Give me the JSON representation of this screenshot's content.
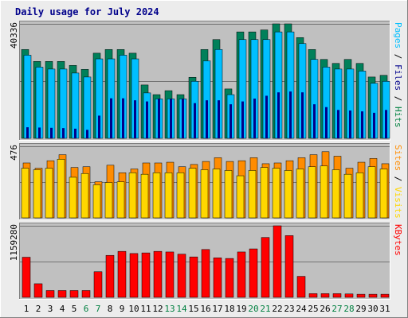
{
  "chart_data": {
    "type": "bar",
    "title": "Daily usage for July 2024",
    "colors": {
      "hits": "#00805a",
      "files": "#00bfff",
      "pages": "#00008b",
      "visits": "#ffd700",
      "sites": "#ff8c00",
      "kbytes": "#ff0000",
      "weekend_label": "#008040",
      "weekday_label": "#000000",
      "panel_bg": "#c0c0c0",
      "frame_bg": "#ececec"
    },
    "categories": [
      "1",
      "2",
      "3",
      "4",
      "5",
      "6",
      "7",
      "8",
      "9",
      "10",
      "11",
      "12",
      "13",
      "14",
      "15",
      "16",
      "17",
      "18",
      "19",
      "20",
      "21",
      "22",
      "23",
      "24",
      "25",
      "26",
      "27",
      "28",
      "29",
      "30",
      "31"
    ],
    "weekend_days": [
      "6",
      "7",
      "13",
      "14",
      "20",
      "21",
      "27",
      "28"
    ],
    "panels": [
      {
        "name": "hits-files-pages",
        "ymax_label": "40336",
        "ymax": 40336,
        "side_labels": [
          {
            "text": "Pages",
            "color": "#00bfff"
          },
          {
            "text": " / ",
            "color": "#000000"
          },
          {
            "text": "Files",
            "color": "#00008b"
          },
          {
            "text": " / ",
            "color": "#000000"
          },
          {
            "text": "Hits",
            "color": "#008040"
          }
        ],
        "series": [
          {
            "key": "hits",
            "values": [
              31300,
              27100,
              27100,
              27100,
              25700,
              24300,
              30000,
              31300,
              31300,
              30000,
              18800,
              15400,
              16800,
              15400,
              21500,
              31300,
              34800,
              17400,
              37500,
              37500,
              38200,
              40336,
              40336,
              35500,
              31300,
              27800,
              26400,
              27800,
              26400,
              21600,
              22200
            ]
          },
          {
            "key": "files",
            "values": [
              29300,
              25100,
              24400,
              24400,
              23000,
              21600,
              28000,
              28000,
              29300,
              28000,
              16000,
              13900,
              13900,
              13900,
              20100,
              27300,
              31300,
              15400,
              34800,
              34800,
              34800,
              37500,
              37500,
              33400,
              27800,
              25100,
              24400,
              24400,
              23700,
              19400,
              20100
            ]
          },
          {
            "key": "pages",
            "values": [
              3900,
              3800,
              3700,
              3600,
              3400,
              3000,
              8000,
              14100,
              14100,
              13400,
              13000,
              13900,
              13900,
              13900,
              12400,
              13400,
              13400,
              12000,
              13000,
              14000,
              15000,
              16200,
              16500,
              16200,
              12000,
              11000,
              10000,
              9800,
              9500,
              9000,
              10000
            ]
          }
        ]
      },
      {
        "name": "sites-visits",
        "ymax_label": "476",
        "ymax": 476,
        "side_labels": [
          {
            "text": "Sites",
            "color": "#ff8c00"
          },
          {
            "text": " / ",
            "color": "#000000"
          },
          {
            "text": "Visits",
            "color": "#ffd700"
          }
        ],
        "series": [
          {
            "key": "sites",
            "values": [
              365,
              330,
              380,
              420,
              335,
              340,
              240,
              350,
              300,
              325,
              365,
              365,
              370,
              340,
              355,
              375,
              400,
              375,
              380,
              400,
              360,
              365,
              380,
              400,
              420,
              440,
              410,
              330,
              370,
              395,
              360
            ]
          },
          {
            "key": "visits",
            "values": [
              330,
              320,
              330,
              390,
              270,
              295,
              220,
              235,
              240,
              300,
              290,
              300,
              300,
              300,
              330,
              320,
              325,
              315,
              280,
              315,
              335,
              330,
              315,
              325,
              340,
              345,
              320,
              290,
              300,
              340,
              325
            ]
          }
        ]
      },
      {
        "name": "kbytes",
        "ymax_label": "1159280",
        "ymax": 1159280,
        "side_labels": [
          {
            "text": "KBytes",
            "color": "#ff0000"
          }
        ],
        "series": [
          {
            "key": "kbytes",
            "values": [
              650000,
              220000,
              110000,
              110000,
              110000,
              110000,
              415000,
              680000,
              745000,
              710000,
              720000,
              745000,
              735000,
              700000,
              655000,
              775000,
              640000,
              630000,
              735000,
              785000,
              970000,
              1159280,
              1000000,
              340000,
              60000,
              60000,
              60000,
              55000,
              50000,
              50000,
              50000
            ]
          }
        ]
      }
    ]
  }
}
